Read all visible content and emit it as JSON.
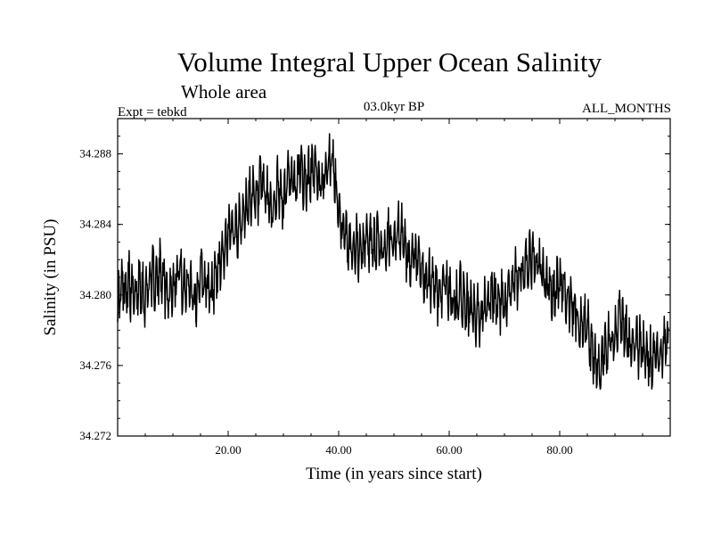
{
  "chart_data": {
    "type": "line",
    "title": "Volume Integral Upper Ocean Salinity",
    "subtitle": "Whole area",
    "experiment": "Expt = tebkd",
    "period": "03.0kyr BP",
    "months": "ALL_MONTHS",
    "xlabel": "Time (in years since start)",
    "ylabel": "Salinity (in PSU)",
    "xlim": [
      0,
      100
    ],
    "ylim": [
      34.272,
      34.29
    ],
    "xticks": [
      20,
      40,
      60,
      80
    ],
    "xtick_labels": [
      "20.00",
      "40.00",
      "60.00",
      "80.00"
    ],
    "yticks": [
      34.272,
      34.276,
      34.28,
      34.284,
      34.288
    ],
    "ytick_labels": [
      "34.272",
      "34.276",
      "34.280",
      "34.284",
      "34.288"
    ],
    "grid": false,
    "series": [
      {
        "name": "salinity",
        "x": [
          0,
          1,
          2,
          3,
          4,
          5,
          6,
          7,
          8,
          9,
          10,
          11,
          12,
          13,
          14,
          15,
          16,
          17,
          18,
          19,
          20,
          21,
          22,
          23,
          24,
          25,
          26,
          27,
          28,
          29,
          30,
          31,
          32,
          33,
          34,
          35,
          36,
          37,
          38,
          39,
          40,
          41,
          42,
          43,
          44,
          45,
          46,
          47,
          48,
          49,
          50,
          51,
          52,
          53,
          54,
          55,
          56,
          57,
          58,
          59,
          60,
          61,
          62,
          63,
          64,
          65,
          66,
          67,
          68,
          69,
          70,
          71,
          72,
          73,
          74,
          75,
          76,
          77,
          78,
          79,
          80,
          81,
          82,
          83,
          84,
          85,
          86,
          87,
          88,
          89,
          90,
          91,
          92,
          93,
          94,
          95,
          96,
          97,
          98,
          99,
          100
        ],
        "values": [
          34.2795,
          34.2805,
          34.2808,
          34.2795,
          34.281,
          34.2798,
          34.2812,
          34.2807,
          34.2815,
          34.28,
          34.2806,
          34.2818,
          34.2802,
          34.281,
          34.2797,
          34.2812,
          34.2805,
          34.28,
          34.2815,
          34.2825,
          34.283,
          34.2842,
          34.2838,
          34.2848,
          34.2858,
          34.285,
          34.2862,
          34.2855,
          34.2848,
          34.286,
          34.2852,
          34.287,
          34.2858,
          34.2875,
          34.2862,
          34.287,
          34.2868,
          34.2863,
          34.2878,
          34.2872,
          34.285,
          34.2835,
          34.2825,
          34.283,
          34.2822,
          34.2833,
          34.2827,
          34.2832,
          34.2824,
          34.2835,
          34.2828,
          34.2838,
          34.2825,
          34.2815,
          34.282,
          34.2812,
          34.2805,
          34.281,
          34.28,
          34.2807,
          34.2802,
          34.2796,
          34.28,
          34.2795,
          34.279,
          34.2785,
          34.2795,
          34.2788,
          34.28,
          34.2795,
          34.2797,
          34.2805,
          34.281,
          34.2812,
          34.2815,
          34.282,
          34.2818,
          34.281,
          34.2805,
          34.28,
          34.2808,
          34.2802,
          34.2795,
          34.279,
          34.2785,
          34.278,
          34.2765,
          34.276,
          34.2768,
          34.2775,
          34.278,
          34.2785,
          34.2778,
          34.277,
          34.2772,
          34.2768,
          34.2765,
          34.276,
          34.2768,
          34.2772,
          34.2775
        ]
      }
    ]
  }
}
